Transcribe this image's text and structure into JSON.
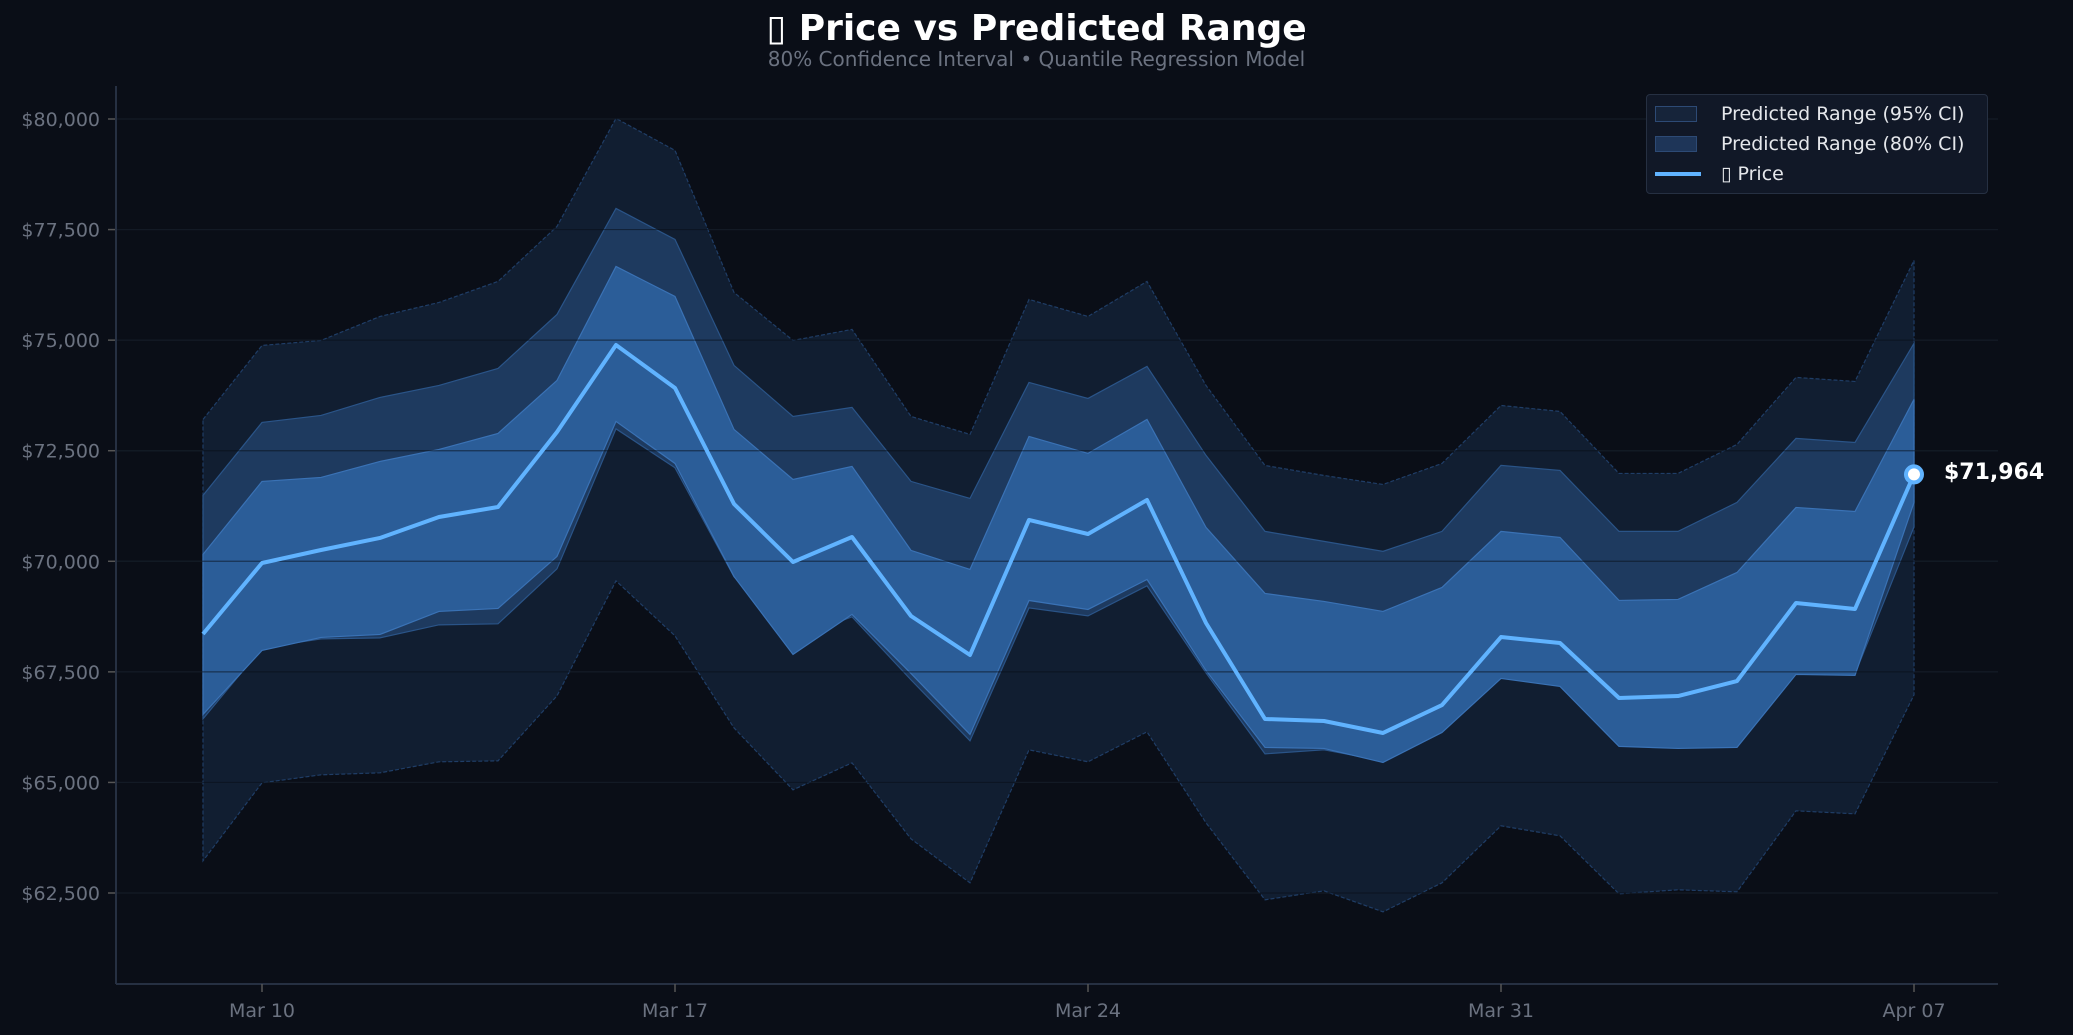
{
  "header": {
    "title": "▯ Price vs Predicted Range",
    "subtitle": "80% Confidence Interval  •  Quantile Regression Model"
  },
  "legend": {
    "items": [
      {
        "label": "Predicted Range (95% CI)",
        "color": "#1a2a45"
      },
      {
        "label": "Predicted Range (80% CI)",
        "color": "#1f3a62"
      },
      {
        "label": "▯ Price",
        "color": "#60b3ff"
      }
    ]
  },
  "end_label": "$71,964",
  "colors": {
    "background": "#0a0e17",
    "band_95": "#111e31",
    "band_mid": "#1e3a5f",
    "band_inner": "#2b5d98",
    "price_line": "#60b3ff",
    "grid": "#1f2937",
    "axis": "#263042"
  },
  "chart_data": {
    "type": "area",
    "title": "▯ Price vs Predicted Range",
    "subtitle": "80% Confidence Interval  •  Quantile Regression Model",
    "xlabel": "",
    "ylabel": "",
    "ylim": [
      60500,
      80800
    ],
    "yticks": [
      "$62,500",
      "$65,000",
      "$67,500",
      "$70,000",
      "$72,500",
      "$75,000",
      "$77,500",
      "$80,000"
    ],
    "ytick_values": [
      62500,
      65000,
      67500,
      70000,
      72500,
      75000,
      77500,
      80000
    ],
    "xticks": [
      "Mar 10",
      "Mar 17",
      "Mar 24",
      "Mar 31",
      "Apr 07"
    ],
    "grid": true,
    "legend_position": "upper right",
    "x": [
      "Mar 09",
      "Mar 10",
      "Mar 11",
      "Mar 12",
      "Mar 13",
      "Mar 14",
      "Mar 15",
      "Mar 16",
      "Mar 17",
      "Mar 18",
      "Mar 19",
      "Mar 20",
      "Mar 21",
      "Mar 22",
      "Mar 23",
      "Mar 24",
      "Mar 25",
      "Mar 26",
      "Mar 27",
      "Mar 28",
      "Mar 29",
      "Mar 30",
      "Mar 31",
      "Apr 01",
      "Apr 02",
      "Apr 03",
      "Apr 04",
      "Apr 05",
      "Apr 06",
      "Apr 07"
    ],
    "series": [
      {
        "name": "▯ Price",
        "values": [
          68356,
          69961,
          70255,
          70527,
          71002,
          71228,
          72924,
          74890,
          73918,
          71296,
          69984,
          70549,
          68763,
          67881,
          70934,
          70617,
          71386,
          68605,
          66434,
          66389,
          66118,
          66750,
          68288,
          68152,
          66909,
          66954,
          67293,
          69057,
          68921,
          71964
        ]
      },
      {
        "name": "Predicted Range (95% CI) upper",
        "values": [
          73207,
          74880,
          74993,
          75536,
          75852,
          76327,
          77571,
          80013,
          79290,
          76079,
          74993,
          75242,
          73275,
          72868,
          75920,
          75536,
          76327,
          73975,
          72166,
          71940,
          71737,
          72212,
          73523,
          73388,
          71986,
          71986,
          72642,
          74157,
          74066,
          76802
        ]
      },
      {
        "name": "Predicted Range (95% CI) lower",
        "values": [
          63227,
          64991,
          65172,
          65217,
          65466,
          65488,
          66958,
          69558,
          68314,
          66234,
          64832,
          65443,
          63724,
          62729,
          65737,
          65466,
          66144,
          64087,
          62346,
          62549,
          62074,
          62730,
          64019,
          63793,
          62482,
          62572,
          62527,
          64358,
          64290,
          66980
        ]
      },
      {
        "name": "Predicted Range (80% CI) upper",
        "values": [
          71489,
          73139,
          73297,
          73704,
          73976,
          74360,
          75581,
          77978,
          77277,
          74428,
          73275,
          73479,
          71806,
          71422,
          74044,
          73682,
          74406,
          72394,
          70676,
          70450,
          70224,
          70676,
          72168,
          72054,
          70676,
          70676,
          71331,
          72778,
          72687,
          74925
        ]
      },
      {
        "name": "Predicted Range (80% CI) lower",
        "values": [
          66438,
          68043,
          68246,
          68269,
          68563,
          68586,
          69830,
          72995,
          72114,
          69649,
          68246,
          68744,
          67319,
          65940,
          68947,
          68766,
          69445,
          67477,
          65646,
          65737,
          65488,
          66280,
          67500,
          67364,
          66121,
          66167,
          66167,
          67568,
          67455,
          70778
        ]
      },
      {
        "name": "Inner band upper",
        "values": [
          70155,
          71806,
          71896,
          72258,
          72529,
          72891,
          74089,
          76666,
          75988,
          72981,
          71851,
          72145,
          70246,
          69816,
          72823,
          72439,
          73207,
          70766,
          69273,
          69092,
          68866,
          69408,
          70675,
          70540,
          69115,
          69137,
          69747,
          71217,
          71127,
          73659
        ]
      },
      {
        "name": "Inner band lower",
        "values": [
          66537,
          67984,
          68278,
          68346,
          68866,
          68934,
          70110,
          73162,
          72212,
          69657,
          67894,
          68799,
          67465,
          66085,
          69114,
          68911,
          69589,
          67532,
          65791,
          65769,
          65452,
          66130,
          67351,
          67171,
          65815,
          65769,
          65792,
          67442,
          67420,
          71331
        ]
      }
    ]
  }
}
